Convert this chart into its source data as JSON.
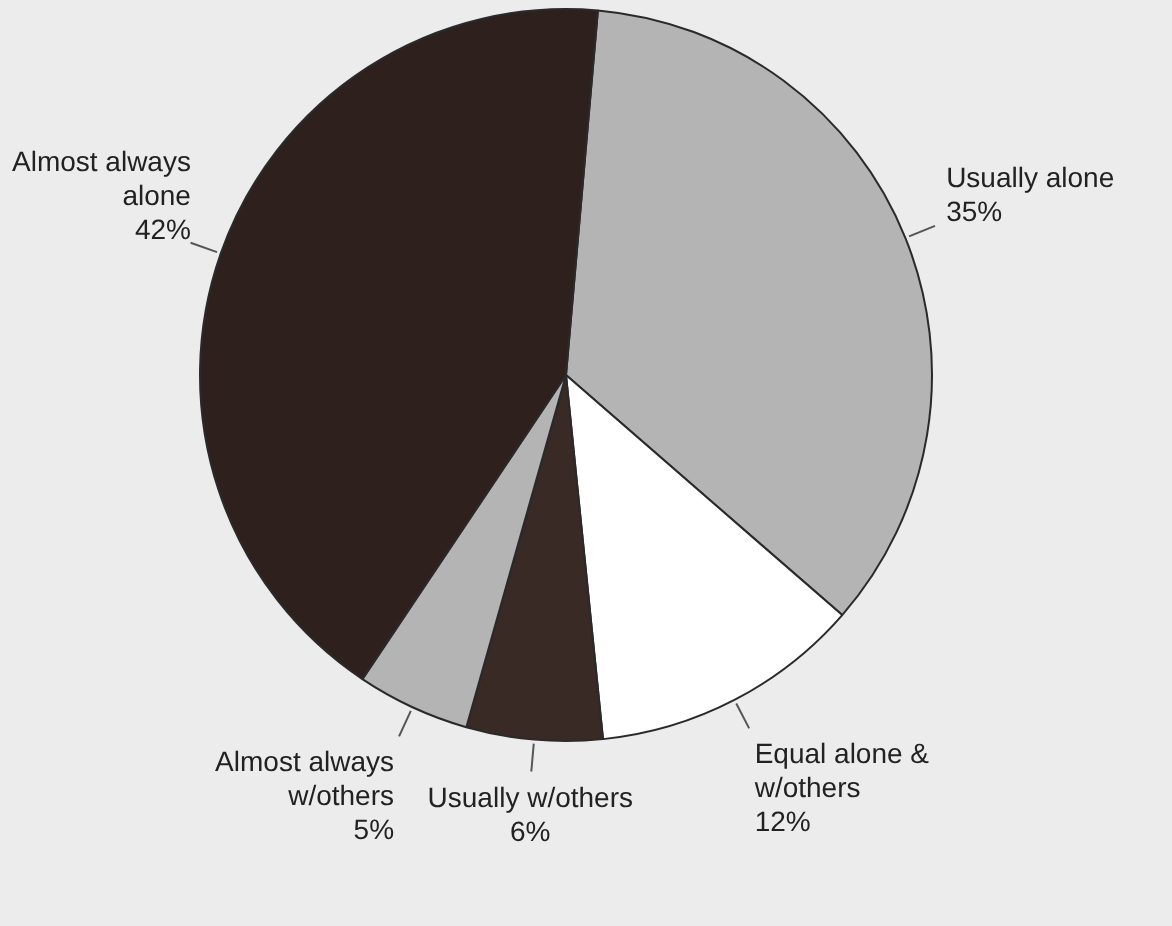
{
  "chart_data": {
    "type": "pie",
    "categories": [
      "Usually alone",
      "Equal alone & w/others",
      "Usually w/others",
      "Almost always w/others",
      "Almost always alone"
    ],
    "values": [
      35,
      12,
      6,
      5,
      42
    ],
    "value_labels": [
      "35%",
      "12%",
      "6%",
      "5%",
      "42%"
    ],
    "colors": [
      "#b4b4b4",
      "#ffffff",
      "#3a2a26",
      "#b4b4b4",
      "#2e201d"
    ],
    "legend": false
  }
}
